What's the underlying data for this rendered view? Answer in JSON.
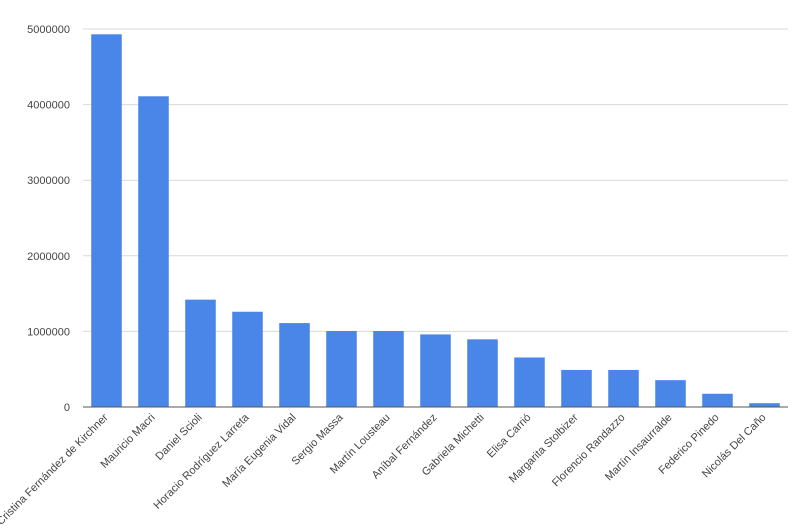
{
  "chart_data": {
    "type": "bar",
    "title": "",
    "xlabel": "",
    "ylabel": "",
    "ylim": [
      0,
      5000000
    ],
    "yticks": [
      0,
      1000000,
      2000000,
      3000000,
      4000000,
      5000000
    ],
    "ytick_labels": [
      "0",
      "1000000",
      "2000000",
      "3000000",
      "4000000",
      "5000000"
    ],
    "grid": true,
    "legend": "none",
    "bar_color": "#4a86e8",
    "categories": [
      "Cristina Fernández de Kirchner",
      "Mauricio Macri",
      "Daniel Scioli",
      "Horacio Rodríguez Larreta",
      "María Eugenia Vidal",
      "Sergio Massa",
      "Martín Lousteau",
      "Aníbal Fernández",
      "Gabriela Michetti",
      "Elisa Carrió",
      "Margarita Stolbizer",
      "Florencio Randazzo",
      "Martín Insaurralde",
      "Federico Pinedo",
      "Nicolás Del Caño"
    ],
    "values": [
      4930000,
      4110000,
      1420000,
      1260000,
      1110000,
      1005000,
      1005000,
      960000,
      895000,
      655000,
      490000,
      490000,
      355000,
      175000,
      50000
    ]
  }
}
